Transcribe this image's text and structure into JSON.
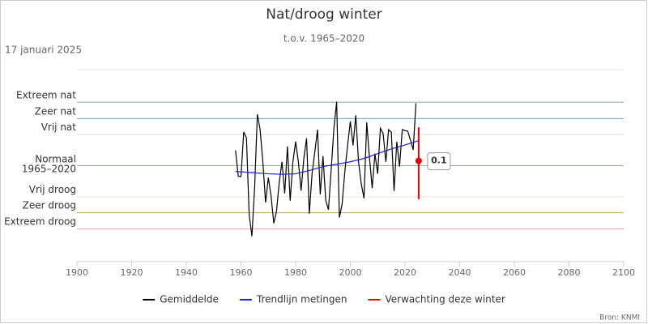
{
  "chart_data": {
    "type": "line",
    "title": "Nat/droog winter",
    "subtitle": "t.o.v. 1965–2020",
    "date": "17 januari 2025",
    "source": "Bron: KNMI",
    "xlim": [
      1900,
      2100
    ],
    "xticks": [
      1900,
      1920,
      1940,
      1960,
      1980,
      2000,
      2020,
      2040,
      2060,
      2080,
      2100
    ],
    "ylim": [
      -2,
      2
    ],
    "yticks": [
      {
        "value": 1.32,
        "label": "Extreem nat"
      },
      {
        "value": 0.98,
        "label": "Zeer nat"
      },
      {
        "value": 0.65,
        "label": "Vrij nat"
      },
      {
        "value": 0,
        "label": "Normaal\n1965–2020"
      },
      {
        "value": -0.65,
        "label": "Vrij droog"
      },
      {
        "value": -0.98,
        "label": "Zeer droog"
      },
      {
        "value": -1.32,
        "label": "Extreem droog"
      }
    ],
    "grid_colors": [
      "#7fa7c9",
      "#6aa6c9",
      "#dddddd",
      "#99bb99",
      "#ece4cf",
      "#e8a060",
      "#e8a0a8"
    ],
    "series": [
      {
        "name": "Gemiddelde",
        "color": "#000000",
        "x": [
          1958,
          1959,
          1960,
          1961,
          1962,
          1963,
          1964,
          1965,
          1966,
          1967,
          1968,
          1969,
          1970,
          1971,
          1972,
          1973,
          1974,
          1975,
          1976,
          1977,
          1978,
          1979,
          1980,
          1981,
          1982,
          1983,
          1984,
          1985,
          1986,
          1987,
          1988,
          1989,
          1990,
          1991,
          1992,
          1993,
          1994,
          1995,
          1996,
          1997,
          1998,
          1999,
          2000,
          2001,
          2002,
          2003,
          2004,
          2005,
          2006,
          2007,
          2008,
          2009,
          2010,
          2011,
          2012,
          2013,
          2014,
          2015,
          2016,
          2017,
          2018,
          2019,
          2020,
          2021,
          2022,
          2023,
          2024
        ],
        "values": [
          0.32,
          -0.22,
          -0.23,
          0.7,
          0.58,
          -1.02,
          -1.47,
          -0.45,
          1.07,
          0.75,
          0.08,
          -0.77,
          -0.25,
          -0.63,
          -1.2,
          -0.95,
          -0.35,
          0.08,
          -0.58,
          0.4,
          -0.73,
          0.08,
          0.5,
          0.08,
          -0.52,
          0.15,
          0.57,
          -1.0,
          -0.17,
          0.28,
          0.75,
          -0.6,
          0.2,
          -0.72,
          -0.92,
          -0.08,
          0.78,
          1.33,
          -1.08,
          -0.8,
          -0.12,
          0.42,
          0.92,
          0.42,
          1.05,
          0.08,
          -0.38,
          -0.68,
          0.9,
          0.17,
          -0.47,
          0.25,
          -0.17,
          0.78,
          0.67,
          0.08,
          0.75,
          0.7,
          -0.53,
          0.5,
          -0.02,
          0.75,
          0.73,
          0.72,
          0.53,
          0.33,
          1.3
        ]
      },
      {
        "name": "Trendlijn metingen",
        "color": "#2222cc",
        "x": [
          1958,
          1965,
          1970,
          1975,
          1980,
          1985,
          1990,
          1995,
          2000,
          2005,
          2010,
          2015,
          2020,
          2025
        ],
        "values": [
          -0.12,
          -0.15,
          -0.17,
          -0.18,
          -0.17,
          -0.1,
          -0.02,
          0.03,
          0.08,
          0.15,
          0.25,
          0.35,
          0.43,
          0.52
        ]
      },
      {
        "name": "Verwachting deze winter",
        "color": "#ee0000",
        "x": [
          2025
        ],
        "values": [
          0.1
        ],
        "low": [
          -0.7
        ],
        "high": [
          0.8
        ]
      }
    ]
  }
}
